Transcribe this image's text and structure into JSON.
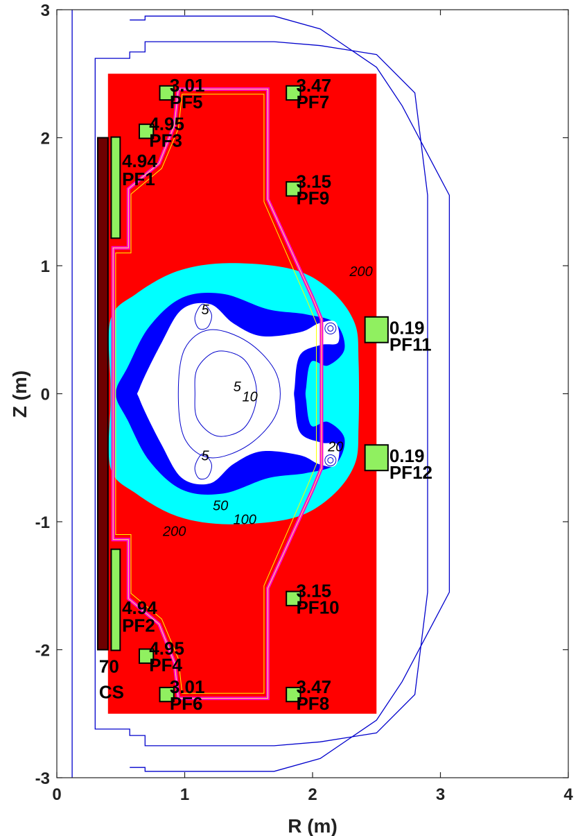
{
  "chart_data": {
    "type": "contour",
    "xlabel": "R (m)",
    "ylabel": "Z (m)",
    "xlim": [
      0,
      4
    ],
    "ylim": [
      -3,
      3
    ],
    "x_ticks": [
      "0",
      "1",
      "2",
      "3",
      "4"
    ],
    "y_ticks": [
      "3",
      "2",
      "1",
      "0",
      "-1",
      "-2",
      "-3"
    ],
    "grid": false,
    "colors": {
      "field_region": "#ff0000",
      "low_field_band": "#00ffff",
      "inner_band": "#0000ff",
      "plasma_core": "#ffffff",
      "pf_coil": "#90f060",
      "cs_coil": "#6e0000",
      "vessel_line": "#0000cc",
      "first_wall": "#ff00cc",
      "separatrix": "#ffff00"
    },
    "field_region_extent": {
      "r": [
        0.4,
        2.5
      ],
      "z": [
        -2.5,
        2.5
      ]
    },
    "contour_labels": [
      {
        "text": "5",
        "r": 1.16,
        "z": 0.62
      },
      {
        "text": "5",
        "r": 1.41,
        "z": 0.02
      },
      {
        "text": "10",
        "r": 1.51,
        "z": -0.06
      },
      {
        "text": "5",
        "r": 1.16,
        "z": -0.52
      },
      {
        "text": "20",
        "r": 2.18,
        "z": -0.45
      },
      {
        "text": "50",
        "r": 1.28,
        "z": -0.91
      },
      {
        "text": "100",
        "r": 1.47,
        "z": -1.02
      },
      {
        "text": "200",
        "r": 0.92,
        "z": -1.11
      },
      {
        "text": "200",
        "r": 2.38,
        "z": 0.92
      }
    ],
    "coils": [
      {
        "name": "PF5",
        "value": "3.01",
        "r": 0.86,
        "z": 2.35
      },
      {
        "name": "PF7",
        "value": "3.47",
        "r": 1.85,
        "z": 2.35
      },
      {
        "name": "PF3",
        "value": "4.95",
        "r": 0.7,
        "z": 2.05
      },
      {
        "name": "PF1",
        "value": "4.94",
        "r": 0.46,
        "z": 1.61
      },
      {
        "name": "PF9",
        "value": "3.15",
        "r": 1.85,
        "z": 1.6
      },
      {
        "name": "PF11",
        "value": "0.19",
        "r": 2.5,
        "z": 0.5
      },
      {
        "name": "PF12",
        "value": "0.19",
        "r": 2.5,
        "z": -0.5
      },
      {
        "name": "PF10",
        "value": "3.15",
        "r": 1.85,
        "z": -1.6
      },
      {
        "name": "PF2",
        "value": "4.94",
        "r": 0.46,
        "z": -1.61
      },
      {
        "name": "PF4",
        "value": "4.95",
        "r": 0.7,
        "z": -2.05
      },
      {
        "name": "PF6",
        "value": "3.01",
        "r": 0.86,
        "z": -2.35
      },
      {
        "name": "PF8",
        "value": "3.47",
        "r": 1.85,
        "z": -2.35
      }
    ],
    "cs_coil": {
      "name": "CS",
      "value": "70",
      "r": [
        0.32,
        0.4
      ],
      "z": [
        -2.0,
        2.0
      ]
    }
  }
}
